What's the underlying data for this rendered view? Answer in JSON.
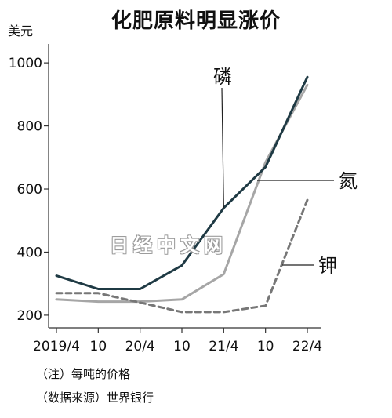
{
  "chart_data": {
    "type": "line",
    "title": "化肥原料明显涨价",
    "ylabel": "美元",
    "ylim": [
      160,
      1060
    ],
    "yticks": [
      200,
      400,
      600,
      800,
      1000
    ],
    "categories": [
      "2019/4",
      "10",
      "20/4",
      "10",
      "21/4",
      "10",
      "22/4"
    ],
    "grid": false,
    "series": [
      {
        "name": "磷",
        "color": "#1f3a44",
        "dash": "solid",
        "values": [
          325,
          283,
          283,
          358,
          540,
          670,
          955
        ]
      },
      {
        "name": "氮",
        "color": "#a6a6a6",
        "dash": "solid",
        "values": [
          250,
          243,
          243,
          250,
          330,
          685,
          930
        ]
      },
      {
        "name": "钾",
        "color": "#777777",
        "dash": "dashed",
        "values": [
          270,
          270,
          240,
          210,
          210,
          230,
          565
        ]
      }
    ],
    "notes": [
      "（注）每吨的价格",
      "（数据来源）世界银行"
    ]
  },
  "watermark": "日经中文网"
}
